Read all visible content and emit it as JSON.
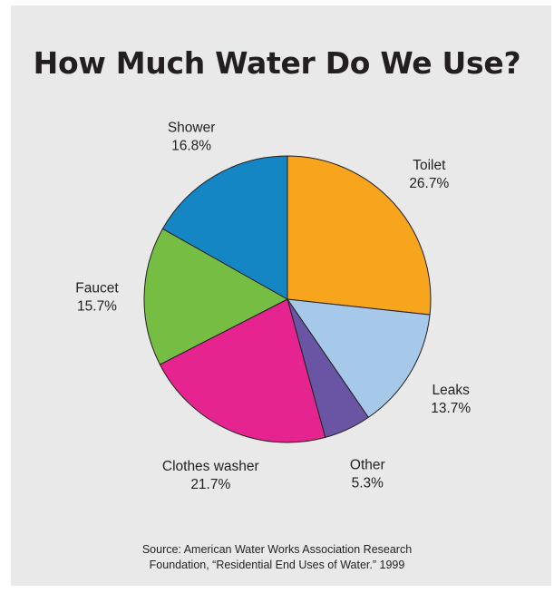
{
  "chart_data": {
    "type": "pie",
    "title": "How Much Water Do We Use?",
    "slices": [
      {
        "label": "Toilet",
        "value": 26.7,
        "value_label": "26.7%",
        "color": "#f7a51c"
      },
      {
        "label": "Leaks",
        "value": 13.7,
        "value_label": "13.7%",
        "color": "#a6c9ea"
      },
      {
        "label": "Other",
        "value": 5.3,
        "value_label": "5.3%",
        "color": "#6a55a4"
      },
      {
        "label": "Clothes washer",
        "value": 21.7,
        "value_label": "21.7%",
        "color": "#e6248f"
      },
      {
        "label": "Faucet",
        "value": 15.7,
        "value_label": "15.7%",
        "color": "#76bd43"
      },
      {
        "label": "Shower",
        "value": 16.8,
        "value_label": "16.8%",
        "color": "#1586c4"
      }
    ],
    "start_angle": "12 o'clock",
    "direction": "clockwise",
    "legend": "none"
  },
  "source": {
    "line1": "Source: American Water Works Association Research",
    "line2": "Foundation, “Residential End Uses of Water.” 1999"
  }
}
